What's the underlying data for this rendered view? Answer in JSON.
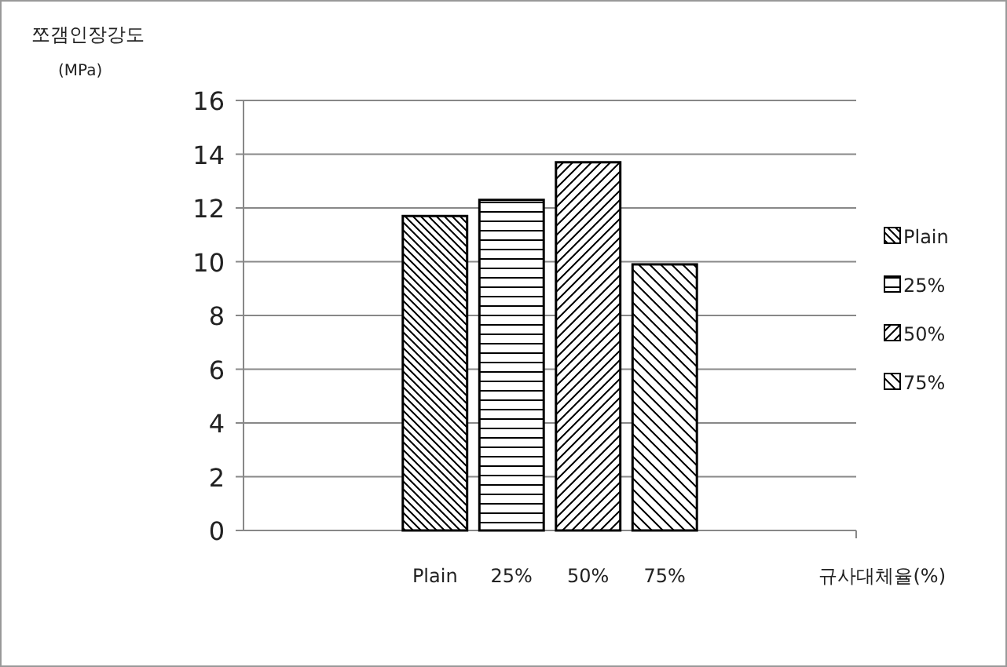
{
  "chart_data": {
    "type": "bar",
    "ylabel": "쪼갬인장강도$_{(MPa)}$",
    "xlabel": "규사대체율(%)",
    "categories": [
      null,
      null,
      "Plain",
      "25%",
      "50%",
      "75%",
      null,
      null
    ],
    "series": [
      {
        "name": "Plain",
        "color": "#000000",
        "values": [
          null,
          null,
          11.7,
          null,
          null,
          null,
          null,
          null
        ]
      },
      {
        "name": "25%",
        "color": "#000000",
        "values": [
          null,
          null,
          null,
          12.3,
          null,
          null,
          null,
          null
        ]
      },
      {
        "name": "50%",
        "color": "#000000",
        "values": [
          null,
          null,
          null,
          null,
          13.7,
          null,
          null,
          null
        ]
      },
      {
        "name": "75%",
        "color": "#000000",
        "values": [
          null,
          null,
          null,
          null,
          null,
          9.9,
          null,
          null
        ]
      }
    ],
    "ylim": [
      0,
      16
    ],
    "yticks": [
      0,
      2,
      4,
      6,
      8,
      10,
      12,
      14,
      16
    ],
    "grid": "y",
    "legend": "right"
  }
}
